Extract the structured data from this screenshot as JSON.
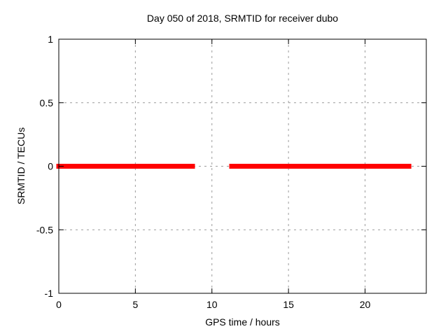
{
  "title": "Day 050 of 2018, SRMTID for receiver dubo",
  "chart_data": {
    "type": "scatter",
    "marker": "filled-square",
    "title": "Day 050 of 2018, SRMTID for receiver dubo",
    "xlabel": "GPS time / hours",
    "ylabel": "SRMTID / TECUs",
    "xlim": [
      0,
      24
    ],
    "ylim": [
      -1,
      1
    ],
    "xticks": [
      {
        "value": 0,
        "label": "0"
      },
      {
        "value": 5,
        "label": "5"
      },
      {
        "value": 10,
        "label": "10"
      },
      {
        "value": 15,
        "label": "15"
      },
      {
        "value": 20,
        "label": "20"
      }
    ],
    "yticks": [
      {
        "value": -1,
        "label": "-1"
      },
      {
        "value": -0.5,
        "label": "-0.5"
      },
      {
        "value": 0,
        "label": "0"
      },
      {
        "value": 0.5,
        "label": "0.5"
      },
      {
        "value": 1,
        "label": "1"
      }
    ],
    "grid": true,
    "grid_xticks": [
      5,
      10,
      15,
      20
    ],
    "grid_yticks": [
      -0.5,
      0,
      0.5
    ],
    "series": [
      {
        "name": "SRMTID",
        "color": "#ff0000",
        "y_value": 0,
        "segments_hours": [
          [
            0.0,
            0.27
          ],
          [
            0.32,
            0.91
          ],
          [
            0.96,
            1.6
          ],
          [
            1.69,
            2.65
          ],
          [
            2.7,
            5.39
          ],
          [
            5.44,
            5.71
          ],
          [
            5.76,
            5.85
          ],
          [
            5.9,
            6.35
          ],
          [
            6.4,
            6.86
          ],
          [
            6.95,
            7.31
          ],
          [
            7.36,
            7.59
          ],
          [
            7.63,
            7.91
          ],
          [
            7.95,
            8.18
          ],
          [
            8.27,
            8.73
          ],
          [
            11.29,
            12.07
          ],
          [
            12.11,
            12.39
          ],
          [
            12.43,
            13.49
          ],
          [
            13.58,
            14.08
          ],
          [
            14.13,
            14.45
          ],
          [
            14.49,
            14.95
          ],
          [
            15.0,
            15.54
          ],
          [
            15.59,
            16.05
          ],
          [
            16.09,
            16.59
          ],
          [
            16.64,
            16.82
          ],
          [
            16.87,
            17.87
          ],
          [
            17.97,
            18.61
          ],
          [
            18.65,
            19.38
          ],
          [
            19.43,
            20.02
          ],
          [
            20.07,
            20.8
          ],
          [
            20.89,
            21.17
          ],
          [
            21.26,
            22.4
          ],
          [
            22.45,
            22.86
          ]
        ]
      }
    ],
    "colors": {
      "border": "#000000",
      "grid": "#9c9c9c",
      "background": "#ffffff",
      "text": "#000000",
      "series": "#ff0000"
    }
  }
}
